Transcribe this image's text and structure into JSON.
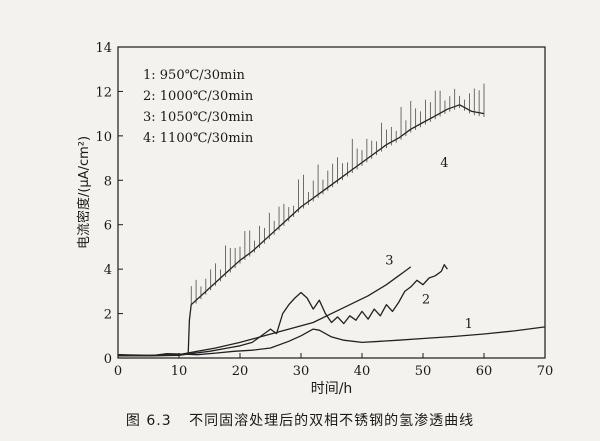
{
  "chart_data": {
    "type": "line",
    "xlabel": "时间/h",
    "ylabel": "电流密度/(μA/cm²)",
    "xlim": [
      0,
      70
    ],
    "ylim": [
      0,
      14
    ],
    "x_ticks": [
      0,
      10,
      20,
      30,
      40,
      50,
      60,
      70
    ],
    "y_ticks": [
      0,
      2,
      4,
      6,
      8,
      10,
      12,
      14
    ],
    "legend_position": "top-left",
    "legend": [
      "1: 950℃/30min",
      "2: 1000℃/30min",
      "3: 1050℃/30min",
      "4: 1100℃/30min"
    ],
    "series": [
      {
        "name": "1: 950℃/30min",
        "label": "1",
        "label_at": [
          57.5,
          1.35
        ],
        "points": [
          [
            0,
            0.15
          ],
          [
            3,
            0.1
          ],
          [
            6,
            0.12
          ],
          [
            8,
            0.2
          ],
          [
            10,
            0.18
          ],
          [
            13,
            0.15
          ],
          [
            16,
            0.22
          ],
          [
            19,
            0.3
          ],
          [
            22,
            0.35
          ],
          [
            25,
            0.45
          ],
          [
            28,
            0.75
          ],
          [
            30,
            1.0
          ],
          [
            32,
            1.3
          ],
          [
            33,
            1.25
          ],
          [
            35,
            0.95
          ],
          [
            37,
            0.8
          ],
          [
            40,
            0.7
          ],
          [
            43,
            0.75
          ],
          [
            46,
            0.8
          ],
          [
            50,
            0.88
          ],
          [
            55,
            0.97
          ],
          [
            60,
            1.08
          ],
          [
            65,
            1.22
          ],
          [
            70,
            1.4
          ]
        ]
      },
      {
        "name": "2: 1000℃/30min",
        "label": "2",
        "label_at": [
          50.5,
          2.45
        ],
        "points": [
          [
            0,
            0.1
          ],
          [
            5,
            0.1
          ],
          [
            10,
            0.12
          ],
          [
            12,
            0.2
          ],
          [
            15,
            0.3
          ],
          [
            18,
            0.45
          ],
          [
            20,
            0.55
          ],
          [
            22,
            0.7
          ],
          [
            24,
            1.1
          ],
          [
            25,
            1.3
          ],
          [
            26,
            1.1
          ],
          [
            27,
            2.0
          ],
          [
            28,
            2.4
          ],
          [
            29,
            2.7
          ],
          [
            30,
            2.95
          ],
          [
            31,
            2.7
          ],
          [
            32,
            2.2
          ],
          [
            33,
            2.6
          ],
          [
            34,
            2.0
          ],
          [
            35,
            1.6
          ],
          [
            36,
            1.85
          ],
          [
            37,
            1.55
          ],
          [
            38,
            1.9
          ],
          [
            39,
            1.7
          ],
          [
            40,
            2.1
          ],
          [
            41,
            1.75
          ],
          [
            42,
            2.2
          ],
          [
            43,
            1.9
          ],
          [
            44,
            2.4
          ],
          [
            45,
            2.1
          ],
          [
            46,
            2.5
          ],
          [
            47,
            3.0
          ],
          [
            48,
            3.2
          ],
          [
            49,
            3.5
          ],
          [
            50,
            3.3
          ],
          [
            51,
            3.6
          ],
          [
            52,
            3.7
          ],
          [
            53,
            3.9
          ],
          [
            53.5,
            4.2
          ],
          [
            54,
            4.0
          ]
        ]
      },
      {
        "name": "3: 1050℃/30min",
        "label": "3",
        "label_at": [
          44.5,
          4.2
        ],
        "points": [
          [
            0,
            0.1
          ],
          [
            5,
            0.1
          ],
          [
            10,
            0.15
          ],
          [
            13,
            0.3
          ],
          [
            16,
            0.45
          ],
          [
            20,
            0.7
          ],
          [
            24,
            1.0
          ],
          [
            28,
            1.3
          ],
          [
            32,
            1.6
          ],
          [
            35,
            2.0
          ],
          [
            38,
            2.4
          ],
          [
            41,
            2.8
          ],
          [
            44,
            3.3
          ],
          [
            46,
            3.7
          ],
          [
            47,
            3.9
          ],
          [
            48,
            4.1
          ]
        ]
      },
      {
        "name": "4: 1100℃/30min",
        "label": "4",
        "label_at": [
          53.5,
          8.6
        ],
        "points": [
          [
            0,
            0.15
          ],
          [
            5,
            0.12
          ],
          [
            10,
            0.15
          ],
          [
            11.5,
            0.2
          ],
          [
            11.7,
            1.7
          ],
          [
            12,
            2.4
          ],
          [
            14,
            2.9
          ],
          [
            16,
            3.4
          ],
          [
            18,
            3.9
          ],
          [
            20,
            4.4
          ],
          [
            22,
            4.8
          ],
          [
            24,
            5.3
          ],
          [
            26,
            5.8
          ],
          [
            28,
            6.3
          ],
          [
            30,
            6.8
          ],
          [
            32,
            7.2
          ],
          [
            34,
            7.6
          ],
          [
            36,
            8.0
          ],
          [
            38,
            8.4
          ],
          [
            40,
            8.8
          ],
          [
            42,
            9.2
          ],
          [
            44,
            9.6
          ],
          [
            46,
            9.9
          ],
          [
            48,
            10.3
          ],
          [
            50,
            10.6
          ],
          [
            52,
            10.9
          ],
          [
            54,
            11.2
          ],
          [
            56,
            11.4
          ],
          [
            58,
            11.1
          ],
          [
            60,
            11.0
          ]
        ]
      }
    ]
  },
  "caption": {
    "number": "图 6.3",
    "text": "不同固溶处理后的双相不锈钢的氢渗透曲线"
  }
}
